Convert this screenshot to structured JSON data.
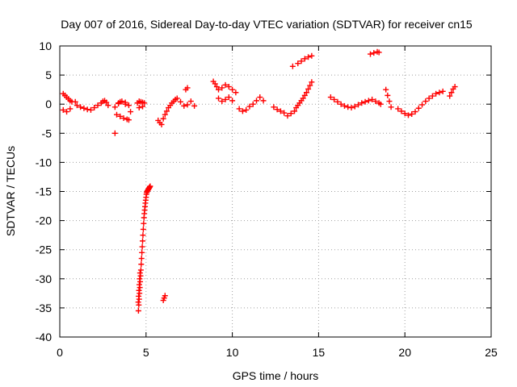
{
  "chart_data": {
    "type": "scatter",
    "title": "Day 007 of 2016, Sidereal Day-to-day VTEC variation (SDTVAR) for receiver cn15",
    "xlabel": "GPS time / hours",
    "ylabel": "SDTVAR / TECUs",
    "xlim": [
      0,
      25
    ],
    "ylim": [
      -40,
      10
    ],
    "xticks": [
      0,
      5,
      10,
      15,
      20,
      25
    ],
    "yticks": [
      10,
      5,
      0,
      -5,
      -10,
      -15,
      -20,
      -25,
      -30,
      -35,
      -40
    ],
    "grid": true,
    "marker": "plus",
    "series": [
      {
        "name": "SDTVAR",
        "color": "#ff0000",
        "x": [
          0.2,
          0.3,
          0.4,
          0.5,
          0.6,
          0.7,
          0.2,
          0.4,
          0.6,
          0.9,
          1.0,
          1.2,
          1.4,
          1.6,
          1.8,
          2.0,
          2.2,
          2.4,
          2.5,
          2.6,
          2.7,
          2.8,
          3.2,
          3.4,
          3.5,
          3.6,
          3.8,
          4.0,
          3.3,
          3.5,
          3.7,
          3.9,
          4.0,
          3.4,
          3.8,
          4.1,
          3.2,
          4.5,
          4.6,
          4.7,
          4.8,
          4.9,
          4.6,
          4.8,
          5.7,
          5.8,
          5.9,
          6.0,
          6.1,
          6.2,
          6.3,
          6.4,
          6.5,
          6.6,
          6.7,
          6.8,
          7.0,
          7.2,
          7.4,
          7.6,
          7.8,
          7.3,
          7.4,
          8.9,
          9.0,
          9.1,
          9.2,
          9.4,
          9.6,
          9.8,
          10.0,
          10.2,
          9.2,
          9.4,
          9.6,
          9.8,
          10.0,
          10.4,
          10.6,
          10.8,
          11.0,
          11.2,
          11.4,
          11.6,
          11.8,
          12.4,
          12.6,
          12.8,
          13.0,
          13.2,
          13.4,
          13.6,
          13.7,
          13.8,
          13.9,
          14.0,
          14.1,
          14.2,
          14.3,
          14.4,
          14.5,
          14.6,
          13.5,
          13.8,
          14.0,
          14.2,
          14.4,
          14.6,
          15.7,
          15.9,
          16.1,
          16.3,
          16.5,
          16.7,
          16.9,
          17.1,
          17.3,
          17.5,
          17.7,
          17.9,
          18.1,
          18.3,
          18.5,
          18.6,
          18.0,
          18.2,
          18.4,
          18.5,
          18.9,
          19.0,
          19.1,
          19.2,
          19.6,
          19.8,
          20.0,
          20.2,
          20.4,
          20.6,
          20.8,
          21.0,
          21.2,
          21.4,
          21.6,
          21.8,
          22.0,
          22.2,
          22.6,
          22.7,
          22.8,
          22.9,
          4.56,
          4.58,
          4.6,
          4.62,
          4.64,
          4.66,
          4.68,
          4.7,
          4.72,
          4.74,
          4.76,
          4.78,
          4.8,
          4.82,
          4.84,
          4.86,
          4.88,
          4.9,
          4.92,
          4.94,
          4.96,
          4.98,
          5.0,
          5.02,
          5.04,
          5.06,
          5.08,
          5.1,
          5.12,
          5.14,
          5.16,
          5.18,
          5.2,
          5.22,
          5.24,
          6.0,
          6.05,
          6.1,
          4.55,
          4.57,
          4.59,
          4.61,
          4.63,
          4.65
        ],
        "y": [
          1.8,
          1.5,
          1.2,
          0.9,
          0.6,
          0.4,
          -1.0,
          -1.3,
          -0.8,
          0.4,
          -0.2,
          -0.5,
          -0.7,
          -0.9,
          -1.0,
          -0.6,
          -0.2,
          0.2,
          0.5,
          0.6,
          0.3,
          -0.2,
          -0.5,
          0.2,
          0.4,
          0.5,
          0.3,
          -0.2,
          -1.8,
          -2.1,
          -2.4,
          -2.6,
          -2.7,
          0.1,
          0.0,
          -1.3,
          -5.0,
          0.2,
          0.5,
          0.4,
          0.3,
          0.2,
          -0.6,
          -0.4,
          -2.8,
          -3.2,
          -3.5,
          -2.5,
          -1.8,
          -1.2,
          -0.6,
          -0.2,
          0.2,
          0.5,
          0.8,
          1.0,
          0.4,
          -0.3,
          -0.1,
          0.5,
          -0.3,
          2.5,
          2.8,
          3.9,
          3.5,
          3.0,
          2.5,
          2.8,
          3.3,
          3.0,
          2.5,
          2.0,
          1.0,
          0.5,
          0.8,
          1.2,
          0.6,
          -0.8,
          -1.2,
          -1.0,
          -0.4,
          0.0,
          0.6,
          1.2,
          0.6,
          -0.5,
          -0.9,
          -1.2,
          -1.5,
          -2.0,
          -1.6,
          -1.2,
          -0.6,
          -0.2,
          0.2,
          0.6,
          1.0,
          1.5,
          2.0,
          2.6,
          3.2,
          3.8,
          6.5,
          7.0,
          7.4,
          7.8,
          8.1,
          8.3,
          1.2,
          0.8,
          0.4,
          0.0,
          -0.3,
          -0.5,
          -0.6,
          -0.4,
          -0.1,
          0.2,
          0.4,
          0.6,
          0.8,
          0.5,
          0.2,
          0.0,
          8.6,
          8.8,
          9.0,
          8.9,
          2.5,
          1.5,
          0.5,
          -0.5,
          -0.8,
          -1.2,
          -1.6,
          -1.9,
          -1.7,
          -1.3,
          -0.7,
          -0.1,
          0.5,
          1.0,
          1.4,
          1.8,
          2.0,
          2.2,
          1.4,
          2.0,
          2.6,
          3.0,
          -35.5,
          -34.5,
          -33.5,
          -32.5,
          -31.5,
          -30.5,
          -29.5,
          -28.5,
          -27.5,
          -26.5,
          -25.5,
          -24.5,
          -23.5,
          -22.5,
          -21.5,
          -20.5,
          -19.5,
          -18.8,
          -18.2,
          -17.6,
          -17.0,
          -16.5,
          -16.0,
          -15.5,
          -15.2,
          -15.0,
          -14.9,
          -14.8,
          -14.7,
          -14.6,
          -14.5,
          -14.4,
          -14.3,
          -14.2,
          -14.1,
          -33.7,
          -33.3,
          -32.9,
          -34.0,
          -33.0,
          -32.0,
          -31.0,
          -30.0,
          -29.0
        ]
      }
    ]
  }
}
